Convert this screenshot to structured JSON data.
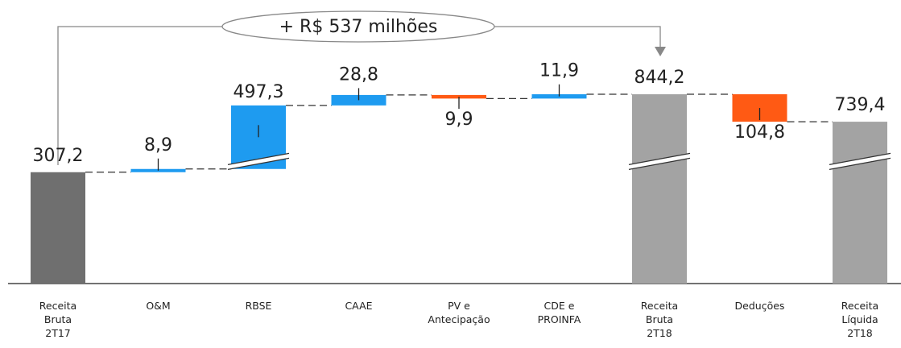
{
  "chart_data": {
    "type": "waterfall",
    "annotation": "+ R$ 537 milhões",
    "categories": [
      "Receita\nBruta\n2T17",
      "O&M",
      "RBSE",
      "CAAE",
      "PV e\nAntecipação",
      "CDE e\nPROINFA",
      "Receita\nBruta\n2T18",
      "Deduções",
      "Receita\nLíquida\n2T18"
    ],
    "measure": [
      "absolute",
      "relative",
      "relative",
      "relative",
      "relative",
      "relative",
      "absolute",
      "relative",
      "absolute"
    ],
    "values": [
      307.2,
      8.9,
      497.3,
      28.8,
      -9.9,
      11.9,
      844.2,
      -104.8,
      739.4
    ],
    "value_labels": [
      "307,2",
      "8,9",
      "497,3",
      "28,8",
      "9,9",
      "11,9",
      "844,2",
      "104,8",
      "739,4"
    ],
    "colors": [
      "#6f6f6f",
      "#1e9bf0",
      "#1e9bf0",
      "#1e9bf0",
      "#ff5a14",
      "#1e9bf0",
      "#a3a3a3",
      "#ff5a14",
      "#a3a3a3"
    ]
  }
}
